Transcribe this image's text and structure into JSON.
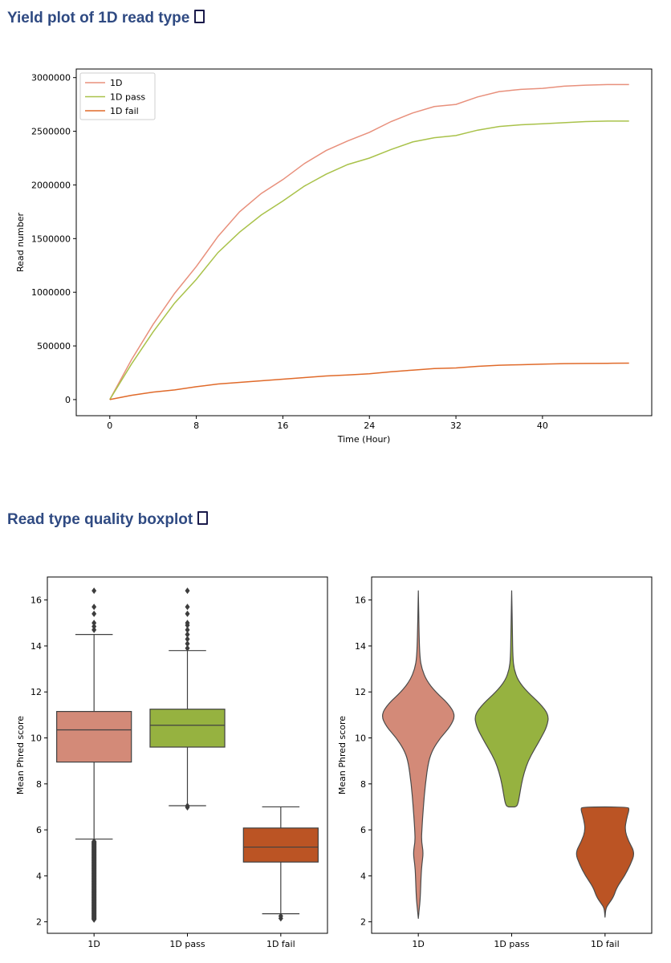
{
  "sections": {
    "yield_title": "Yield plot of 1D read type",
    "quality_title": "Read type quality boxplot"
  },
  "chart_data": [
    {
      "type": "line",
      "xlabel": "Time (Hour)",
      "ylabel": "Read number",
      "xlim": [
        -3.1,
        50.1
      ],
      "ylim": [
        -150000,
        3080000
      ],
      "x_ticks": [
        0,
        8,
        16,
        24,
        32,
        40
      ],
      "y_ticks": [
        0,
        500000,
        1000000,
        1500000,
        2000000,
        2500000,
        3000000
      ],
      "legend_position": "upper-left",
      "grid": false,
      "series": [
        {
          "name": "1D",
          "color": "#e8907c",
          "x": [
            0,
            2,
            4,
            6,
            8,
            10,
            12,
            14,
            16,
            18,
            20,
            22,
            24,
            26,
            28,
            30,
            32,
            34,
            36,
            38,
            40,
            42,
            44,
            46,
            48
          ],
          "y": [
            0,
            370000,
            700000,
            990000,
            1240000,
            1520000,
            1750000,
            1920000,
            2050000,
            2200000,
            2320000,
            2410000,
            2490000,
            2590000,
            2670000,
            2730000,
            2750000,
            2820000,
            2870000,
            2890000,
            2900000,
            2920000,
            2930000,
            2935000,
            2935000
          ]
        },
        {
          "name": "1D pass",
          "color": "#a9c24a",
          "x": [
            0,
            2,
            4,
            6,
            8,
            10,
            12,
            14,
            16,
            18,
            20,
            22,
            24,
            26,
            28,
            30,
            32,
            34,
            36,
            38,
            40,
            42,
            44,
            46,
            48
          ],
          "y": [
            0,
            330000,
            630000,
            900000,
            1120000,
            1370000,
            1560000,
            1720000,
            1850000,
            1990000,
            2100000,
            2190000,
            2250000,
            2330000,
            2400000,
            2440000,
            2460000,
            2510000,
            2545000,
            2560000,
            2570000,
            2580000,
            2590000,
            2595000,
            2595000
          ]
        },
        {
          "name": "1D fail",
          "color": "#e06a2a",
          "x": [
            0,
            2,
            4,
            6,
            8,
            10,
            12,
            14,
            16,
            18,
            20,
            22,
            24,
            26,
            28,
            30,
            32,
            34,
            36,
            38,
            40,
            42,
            44,
            46,
            48
          ],
          "y": [
            0,
            40000,
            70000,
            90000,
            120000,
            145000,
            160000,
            175000,
            190000,
            205000,
            220000,
            230000,
            240000,
            260000,
            275000,
            290000,
            295000,
            310000,
            320000,
            325000,
            330000,
            335000,
            337000,
            338000,
            340000
          ]
        }
      ]
    },
    {
      "type": "box",
      "ylabel": "Mean Phred score",
      "ylim": [
        1.5,
        17.0
      ],
      "y_ticks": [
        2,
        4,
        6,
        8,
        10,
        12,
        14,
        16
      ],
      "categories": [
        "1D",
        "1D pass",
        "1D fail"
      ],
      "boxes": [
        {
          "name": "1D",
          "color": "#d38a78",
          "whisker_low": 5.6,
          "q1": 8.95,
          "median": 10.35,
          "q3": 11.15,
          "whisker_high": 14.5,
          "outliers_high": [
            14.7,
            14.85,
            15.0,
            15.4,
            15.7,
            16.4
          ],
          "outliers_low_range": [
            2.1,
            5.5
          ]
        },
        {
          "name": "1D pass",
          "color": "#96b240",
          "whisker_low": 7.05,
          "q1": 9.6,
          "median": 10.55,
          "q3": 11.25,
          "whisker_high": 13.8,
          "outliers_high": [
            13.9,
            14.1,
            14.3,
            14.5,
            14.7,
            14.9,
            15.0,
            15.4,
            15.7,
            16.4
          ],
          "outliers_low": [
            6.98,
            7.04
          ]
        },
        {
          "name": "1D fail",
          "color": "#bb5424",
          "whisker_low": 2.35,
          "q1": 4.6,
          "median": 5.25,
          "q3": 6.08,
          "whisker_high": 7.0,
          "outliers_low": [
            2.15,
            2.25
          ]
        }
      ]
    },
    {
      "type": "violin",
      "ylabel": "Mean Phred score",
      "ylim": [
        1.5,
        17.0
      ],
      "y_ticks": [
        2,
        4,
        6,
        8,
        10,
        12,
        14,
        16
      ],
      "categories": [
        "1D",
        "1D pass",
        "1D fail"
      ],
      "violins": [
        {
          "name": "1D",
          "color": "#d38a78",
          "profile": [
            [
              2.15,
              0
            ],
            [
              2.5,
              0.02
            ],
            [
              3,
              0.05
            ],
            [
              4,
              0.07
            ],
            [
              4.5,
              0.09
            ],
            [
              5,
              0.13
            ],
            [
              5.5,
              0.08
            ],
            [
              6,
              0.09
            ],
            [
              7,
              0.13
            ],
            [
              8,
              0.18
            ],
            [
              9,
              0.26
            ],
            [
              9.5,
              0.37
            ],
            [
              10,
              0.56
            ],
            [
              10.5,
              0.82
            ],
            [
              11,
              0.95
            ],
            [
              11.5,
              0.76
            ],
            [
              12,
              0.44
            ],
            [
              12.5,
              0.21
            ],
            [
              13,
              0.09
            ],
            [
              13.5,
              0.04
            ],
            [
              14.5,
              0.02
            ],
            [
              16.4,
              0
            ]
          ]
        },
        {
          "name": "1D pass",
          "color": "#96b240",
          "profile": [
            [
              7.0,
              0.08
            ],
            [
              7.05,
              0.15
            ],
            [
              7.5,
              0.2
            ],
            [
              8,
              0.25
            ],
            [
              8.5,
              0.32
            ],
            [
              9,
              0.42
            ],
            [
              9.5,
              0.58
            ],
            [
              10,
              0.75
            ],
            [
              10.5,
              0.9
            ],
            [
              11,
              0.95
            ],
            [
              11.5,
              0.72
            ],
            [
              12,
              0.4
            ],
            [
              12.5,
              0.16
            ],
            [
              13,
              0.06
            ],
            [
              13.5,
              0.03
            ],
            [
              14.5,
              0.02
            ],
            [
              16.4,
              0
            ]
          ]
        },
        {
          "name": "1D fail",
          "color": "#bb5424",
          "profile": [
            [
              2.2,
              0
            ],
            [
              2.6,
              0.02
            ],
            [
              2.8,
              0.1
            ],
            [
              3.1,
              0.22
            ],
            [
              3.5,
              0.3
            ],
            [
              4,
              0.5
            ],
            [
              4.5,
              0.65
            ],
            [
              5,
              0.76
            ],
            [
              5.5,
              0.6
            ],
            [
              6,
              0.5
            ],
            [
              6.5,
              0.55
            ],
            [
              6.9,
              0.62
            ],
            [
              7.0,
              0.58
            ]
          ]
        }
      ]
    }
  ]
}
